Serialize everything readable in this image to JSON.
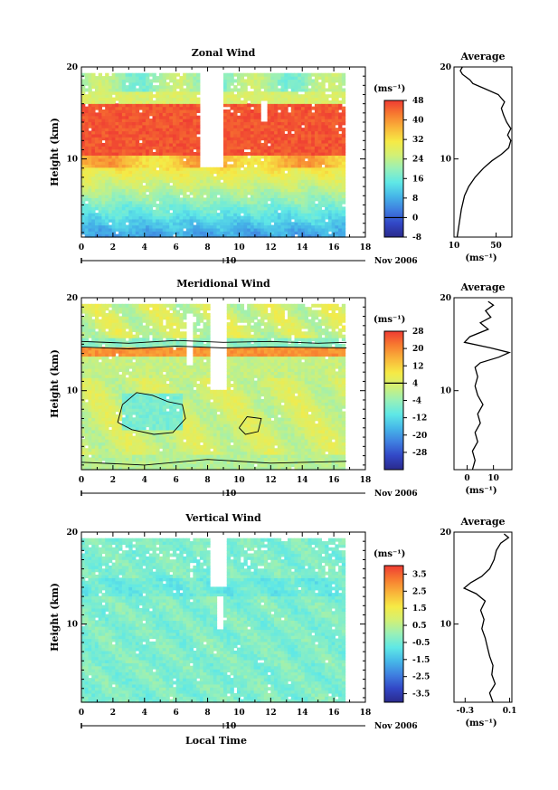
{
  "chart_data": [
    {
      "type": "heatmap",
      "title": "Zonal Wind",
      "ylabel": "Height (km)",
      "xlim": [
        0,
        18
      ],
      "ylim": [
        1.5,
        20
      ],
      "x_ticks": [
        "0",
        "2",
        "4",
        "6",
        "8",
        "10",
        "12",
        "14",
        "16",
        "18"
      ],
      "y_ticks": [
        "10",
        "20"
      ],
      "date_marker": "10",
      "date_label": "Nov 2006",
      "colorbar": {
        "unit_label": "(ms⁻¹)",
        "range": [
          -8,
          48
        ],
        "ticks": [
          "48",
          "40",
          "32",
          "24",
          "16",
          "8",
          "0",
          "-8"
        ]
      },
      "profile": {
        "title": "Average",
        "xlim": [
          10,
          65
        ],
        "x_ticks": [
          "10",
          "50"
        ],
        "x_unit": "(ms⁻¹)",
        "y_ticks": [
          "10",
          "20"
        ],
        "points": [
          [
            13,
            1.5
          ],
          [
            15,
            3
          ],
          [
            17,
            4.5
          ],
          [
            20,
            6
          ],
          [
            24,
            7
          ],
          [
            30,
            8
          ],
          [
            38,
            9
          ],
          [
            46,
            9.8
          ],
          [
            55,
            10.5
          ],
          [
            62,
            11.2
          ],
          [
            64,
            12
          ],
          [
            61,
            12.6
          ],
          [
            64,
            13.3
          ],
          [
            60,
            14
          ],
          [
            57,
            14.8
          ],
          [
            55,
            15.5
          ],
          [
            58,
            16.2
          ],
          [
            52,
            17
          ],
          [
            40,
            17.6
          ],
          [
            28,
            18.2
          ],
          [
            25,
            18.6
          ],
          [
            18,
            19.2
          ],
          [
            16,
            19.6
          ],
          [
            18,
            20
          ]
        ]
      }
    },
    {
      "type": "heatmap",
      "title": "Meridional Wind",
      "ylabel": "Height (km)",
      "xlim": [
        0,
        18
      ],
      "ylim": [
        1.5,
        20
      ],
      "x_ticks": [
        "0",
        "2",
        "4",
        "6",
        "8",
        "10",
        "12",
        "14",
        "16",
        "18"
      ],
      "y_ticks": [
        "10",
        "20"
      ],
      "date_marker": "10",
      "date_label": "Nov 2006",
      "colorbar": {
        "unit_label": "(ms⁻¹)",
        "range": [
          -36,
          28
        ],
        "ticks": [
          "28",
          "20",
          "12",
          "4",
          "-4",
          "-12",
          "-20",
          "-28"
        ]
      },
      "profile": {
        "title": "Average",
        "xlim": [
          -5,
          17
        ],
        "x_ticks": [
          "0",
          "10"
        ],
        "x_unit": "(ms⁻¹)",
        "y_ticks": [
          "10",
          "20"
        ],
        "points": [
          [
            2,
            1.5
          ],
          [
            3,
            2.5
          ],
          [
            2,
            3.5
          ],
          [
            4,
            4.5
          ],
          [
            3,
            5.5
          ],
          [
            5,
            6.5
          ],
          [
            4,
            7.5
          ],
          [
            6,
            8.5
          ],
          [
            4,
            9.5
          ],
          [
            3,
            10.5
          ],
          [
            4,
            11.5
          ],
          [
            3,
            12.5
          ],
          [
            5,
            13
          ],
          [
            12,
            13.6
          ],
          [
            16,
            14.1
          ],
          [
            9,
            14.6
          ],
          [
            -1,
            15.2
          ],
          [
            1,
            15.8
          ],
          [
            8,
            16.6
          ],
          [
            5,
            17.3
          ],
          [
            9,
            17.9
          ],
          [
            7,
            18.6
          ],
          [
            10,
            19.2
          ],
          [
            8,
            19.6
          ]
        ]
      }
    },
    {
      "type": "heatmap",
      "title": "Vertical Wind",
      "ylabel": "Height (km)",
      "xlabel": "Local Time",
      "xlim": [
        0,
        18
      ],
      "ylim": [
        1.5,
        20
      ],
      "x_ticks": [
        "0",
        "2",
        "4",
        "6",
        "8",
        "10",
        "12",
        "14",
        "16",
        "18"
      ],
      "y_ticks": [
        "10",
        "20"
      ],
      "date_marker": "10",
      "date_label": "Nov 2006",
      "colorbar": {
        "unit_label": "(ms⁻¹)",
        "range": [
          -4,
          4
        ],
        "ticks": [
          "3.5",
          "2.5",
          "1.5",
          "0.5",
          "-0.5",
          "-1.5",
          "-2.5",
          "-3.5"
        ]
      },
      "profile": {
        "title": "Average",
        "xlim": [
          -0.4,
          0.12
        ],
        "x_ticks": [
          "-0.3",
          "0.1"
        ],
        "x_unit": "(ms⁻¹)",
        "y_ticks": [
          "10",
          "20"
        ],
        "points": [
          [
            -0.05,
            1.5
          ],
          [
            -0.08,
            2.5
          ],
          [
            -0.03,
            3.5
          ],
          [
            -0.06,
            4.5
          ],
          [
            -0.05,
            5.5
          ],
          [
            -0.08,
            6.5
          ],
          [
            -0.1,
            7.5
          ],
          [
            -0.12,
            8.5
          ],
          [
            -0.15,
            9.5
          ],
          [
            -0.13,
            10.5
          ],
          [
            -0.16,
            11.5
          ],
          [
            -0.12,
            12.5
          ],
          [
            -0.2,
            13.3
          ],
          [
            -0.31,
            13.9
          ],
          [
            -0.25,
            14.5
          ],
          [
            -0.15,
            15.2
          ],
          [
            -0.08,
            16
          ],
          [
            -0.04,
            17
          ],
          [
            -0.02,
            18
          ],
          [
            0.02,
            18.8
          ],
          [
            0.09,
            19.4
          ],
          [
            0.05,
            19.8
          ]
        ]
      }
    }
  ]
}
